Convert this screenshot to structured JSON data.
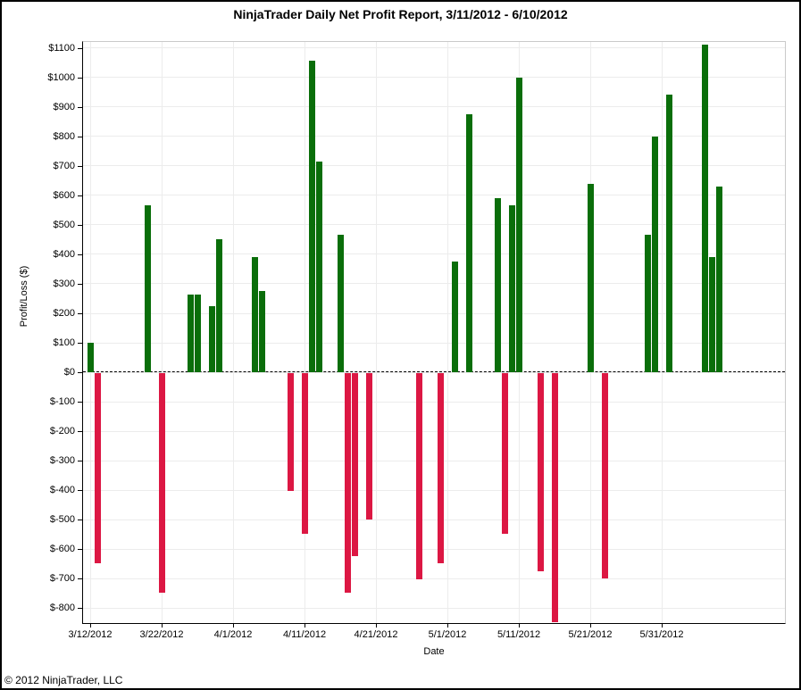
{
  "footer": {
    "copyright": "© 2012 NinjaTrader, LLC"
  },
  "chart_data": {
    "type": "bar",
    "title": "NinjaTrader Daily Net Profit Report, 3/11/2012 - 6/10/2012",
    "xlabel": "Date",
    "ylabel": "Profit/Loss ($)",
    "ylim": [
      -850,
      1120
    ],
    "ytick_start": 1100,
    "ytick_end": -800,
    "ytick_step": 100,
    "ytick_prefix": "$",
    "xticks": [
      "3/12/2012",
      "3/22/2012",
      "4/1/2012",
      "4/11/2012",
      "4/21/2012",
      "5/1/2012",
      "5/11/2012",
      "5/21/2012",
      "5/31/2012"
    ],
    "grid": true,
    "zero_line": "dashed",
    "legend": "none",
    "colors": {
      "positive": "#0a6e0a",
      "negative": "#dc1743",
      "grid": "#ececec"
    },
    "points": [
      {
        "date": "3/12/2012",
        "value": 100
      },
      {
        "date": "3/13/2012",
        "value": -645
      },
      {
        "date": "3/20/2012",
        "value": 565
      },
      {
        "date": "3/22/2012",
        "value": -745
      },
      {
        "date": "3/26/2012",
        "value": 265
      },
      {
        "date": "3/27/2012",
        "value": 265
      },
      {
        "date": "3/29/2012",
        "value": 225
      },
      {
        "date": "3/30/2012",
        "value": 450
      },
      {
        "date": "4/4/2012",
        "value": 390
      },
      {
        "date": "4/5/2012",
        "value": 275
      },
      {
        "date": "4/9/2012",
        "value": -400
      },
      {
        "date": "4/11/2012",
        "value": -545
      },
      {
        "date": "4/12/2012",
        "value": 1055
      },
      {
        "date": "4/13/2012",
        "value": 715
      },
      {
        "date": "4/16/2012",
        "value": 465
      },
      {
        "date": "4/17/2012",
        "value": -745
      },
      {
        "date": "4/18/2012",
        "value": -620
      },
      {
        "date": "4/20/2012",
        "value": -495
      },
      {
        "date": "4/27/2012",
        "value": -700
      },
      {
        "date": "4/30/2012",
        "value": -645
      },
      {
        "date": "5/2/2012",
        "value": 375
      },
      {
        "date": "5/4/2012",
        "value": 875
      },
      {
        "date": "5/8/2012",
        "value": 590
      },
      {
        "date": "5/9/2012",
        "value": -545
      },
      {
        "date": "5/10/2012",
        "value": 565
      },
      {
        "date": "5/11/2012",
        "value": 1000
      },
      {
        "date": "5/14/2012",
        "value": -670
      },
      {
        "date": "5/16/2012",
        "value": -845
      },
      {
        "date": "5/21/2012",
        "value": 640
      },
      {
        "date": "5/23/2012",
        "value": -695
      },
      {
        "date": "5/29/2012",
        "value": 465
      },
      {
        "date": "5/30/2012",
        "value": 800
      },
      {
        "date": "6/1/2012",
        "value": 940
      },
      {
        "date": "6/6/2012",
        "value": 1110
      },
      {
        "date": "6/7/2012",
        "value": 390
      },
      {
        "date": "6/8/2012",
        "value": 630
      }
    ]
  }
}
